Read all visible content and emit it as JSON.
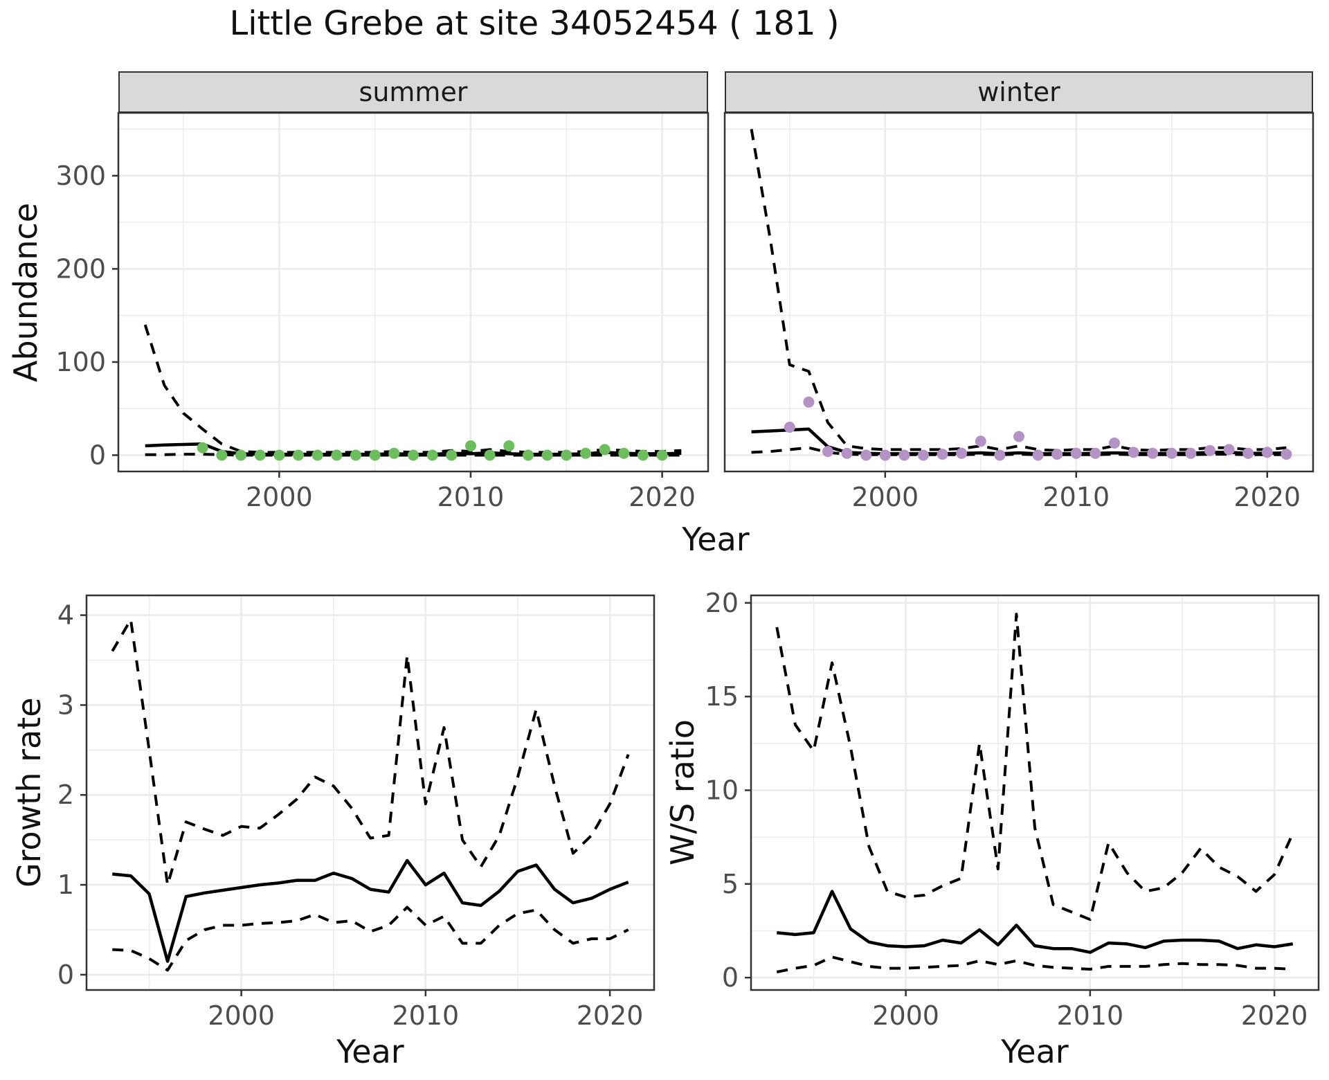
{
  "title": "Little Grebe at site 34052454 ( 181 )",
  "facets": {
    "summer": "summer",
    "winter": "winter"
  },
  "axes": {
    "abundance_label": "Abundance",
    "growth_label": "Growth rate",
    "ws_label": "W/S ratio",
    "year_label": "Year"
  },
  "colors": {
    "summer_point": "#6CBE5C",
    "winter_point": "#B592C6",
    "line": "#000000",
    "grid": "#EBEBEB",
    "panel_border": "#333333",
    "tick_label": "#4D4D4D",
    "strip_bg": "#D9D9D9"
  },
  "chart_data": [
    {
      "id": "abundance-summer",
      "type": "line",
      "facet_label": "summer",
      "ylabel": "Abundance",
      "xlabel": "Year",
      "xlim": [
        1991.6,
        2022.4
      ],
      "ylim": [
        -17.5,
        367.5
      ],
      "xticks": [
        2000,
        2010,
        2020
      ],
      "xminor": [
        1995,
        2005,
        2015
      ],
      "yticks": [
        0,
        100,
        200,
        300
      ],
      "yminor": [
        50,
        150,
        250,
        350
      ],
      "years": [
        1993,
        1994,
        1995,
        1996,
        1997,
        1998,
        1999,
        2000,
        2001,
        2002,
        2003,
        2004,
        2005,
        2006,
        2007,
        2008,
        2009,
        2010,
        2011,
        2012,
        2013,
        2014,
        2015,
        2016,
        2017,
        2018,
        2019,
        2020,
        2021
      ],
      "series": [
        {
          "name": "upper_95ci",
          "style": "dashed",
          "values": [
            140,
            75,
            45,
            28,
            12,
            4,
            3,
            3,
            3,
            3,
            3,
            3,
            3,
            4,
            3,
            3,
            5,
            4,
            6,
            4,
            3,
            3,
            3,
            4,
            6,
            5,
            4,
            4,
            5
          ]
        },
        {
          "name": "modelled_mean",
          "style": "solid",
          "values": [
            10,
            11,
            11.5,
            12,
            4,
            1.5,
            1,
            1,
            1,
            1,
            1,
            1,
            1,
            1.5,
            1,
            1,
            2,
            1.5,
            2.5,
            1.5,
            1,
            1,
            1,
            1.5,
            3,
            2,
            1.5,
            1.5,
            2
          ]
        },
        {
          "name": "lower_95ci",
          "style": "dashed",
          "values": [
            0.5,
            0.5,
            1,
            1,
            0.5,
            0,
            0,
            0,
            0,
            0,
            0,
            0,
            0,
            0,
            0,
            0,
            0,
            0,
            0,
            0,
            0,
            0,
            0,
            0,
            0,
            0,
            0,
            0,
            0
          ]
        }
      ],
      "points": {
        "name": "observed-abundance-summer",
        "color": "#6CBE5C",
        "years": [
          1996,
          1997,
          1998,
          1999,
          2000,
          2001,
          2002,
          2003,
          2004,
          2005,
          2006,
          2007,
          2008,
          2009,
          2010,
          2011,
          2012,
          2013,
          2014,
          2015,
          2016,
          2017,
          2018,
          2019,
          2020
        ],
        "values": [
          8,
          0,
          0,
          0,
          0,
          0,
          0,
          0,
          0,
          0,
          2,
          0,
          0,
          0,
          10,
          0,
          10,
          0,
          0,
          0,
          2,
          6,
          2,
          0,
          0
        ]
      }
    },
    {
      "id": "abundance-winter",
      "type": "line",
      "facet_label": "winter",
      "xlabel": "Year",
      "xlim": [
        1991.6,
        2022.4
      ],
      "ylim": [
        -17.5,
        367.5
      ],
      "xticks": [
        2000,
        2010,
        2020
      ],
      "xminor": [
        1995,
        2005,
        2015
      ],
      "yticks": [
        0,
        100,
        200,
        300
      ],
      "yminor": [
        50,
        150,
        250,
        350
      ],
      "years": [
        1993,
        1994,
        1995,
        1996,
        1997,
        1998,
        1999,
        2000,
        2001,
        2002,
        2003,
        2004,
        2005,
        2006,
        2007,
        2008,
        2009,
        2010,
        2011,
        2012,
        2013,
        2014,
        2015,
        2016,
        2017,
        2018,
        2019,
        2020,
        2021
      ],
      "series": [
        {
          "name": "upper_95ci",
          "style": "dashed",
          "values": [
            350,
            230,
            97,
            90,
            35,
            10,
            7,
            6,
            6,
            6,
            6,
            7,
            10,
            6,
            10,
            6,
            5,
            6,
            6,
            10,
            6,
            5,
            6,
            6,
            8,
            8,
            6,
            6,
            8
          ]
        },
        {
          "name": "modelled_mean",
          "style": "solid",
          "values": [
            25,
            26,
            27,
            28,
            9,
            3,
            2,
            1.5,
            1.5,
            1.5,
            1.5,
            2,
            2.5,
            1.5,
            2.5,
            1.5,
            1.5,
            1.5,
            2,
            2.5,
            2,
            1.5,
            2,
            2,
            3,
            3,
            2,
            2,
            2.5
          ]
        },
        {
          "name": "lower_95ci",
          "style": "dashed",
          "values": [
            3,
            4,
            6,
            8,
            3,
            1,
            0.5,
            0.5,
            0.5,
            0.5,
            0.5,
            0.5,
            1,
            0.5,
            1,
            0.5,
            0.5,
            0.5,
            0.5,
            1,
            0.5,
            0.5,
            0.5,
            0.5,
            1,
            1,
            0.5,
            0.5,
            0.5
          ]
        }
      ],
      "points": {
        "name": "observed-abundance-winter",
        "color": "#B592C6",
        "years": [
          1995,
          1996,
          1997,
          1998,
          1999,
          2000,
          2001,
          2002,
          2003,
          2004,
          2005,
          2006,
          2007,
          2008,
          2009,
          2010,
          2011,
          2012,
          2013,
          2014,
          2015,
          2016,
          2017,
          2018,
          2019,
          2020,
          2021
        ],
        "values": [
          30,
          57,
          4,
          2,
          0,
          0,
          0,
          0,
          1,
          2,
          15,
          0,
          20,
          0,
          1,
          2,
          2,
          13,
          3,
          2,
          2,
          2,
          5,
          6,
          2,
          3,
          1
        ]
      }
    },
    {
      "id": "growth-rate",
      "type": "line",
      "ylabel": "Growth rate",
      "xlabel": "Year",
      "xlim": [
        1991.6,
        2022.4
      ],
      "ylim": [
        -0.17,
        4.22
      ],
      "xticks": [
        2000,
        2010,
        2020
      ],
      "xminor": [
        1995,
        2005,
        2015
      ],
      "yticks": [
        0,
        1,
        2,
        3,
        4
      ],
      "yminor": [
        0.5,
        1.5,
        2.5,
        3.5
      ],
      "years": [
        1993,
        1994,
        1995,
        1996,
        1997,
        1998,
        1999,
        2000,
        2001,
        2002,
        2003,
        2004,
        2005,
        2006,
        2007,
        2008,
        2009,
        2010,
        2011,
        2012,
        2013,
        2014,
        2015,
        2016,
        2017,
        2018,
        2019,
        2020,
        2021
      ],
      "series": [
        {
          "name": "upper_95ci",
          "style": "dashed",
          "values": [
            3.6,
            3.95,
            2.5,
            1.0,
            1.7,
            1.62,
            1.55,
            1.65,
            1.63,
            1.78,
            1.95,
            2.2,
            2.1,
            1.85,
            1.52,
            1.55,
            3.55,
            1.9,
            2.75,
            1.5,
            1.2,
            1.55,
            2.2,
            2.95,
            2.1,
            1.35,
            1.55,
            1.9,
            2.45
          ]
        },
        {
          "name": "modelled_mean",
          "style": "solid",
          "values": [
            1.12,
            1.1,
            0.9,
            0.15,
            0.87,
            0.91,
            0.94,
            0.97,
            1.0,
            1.02,
            1.05,
            1.05,
            1.13,
            1.07,
            0.95,
            0.92,
            1.27,
            1.0,
            1.13,
            0.8,
            0.77,
            0.93,
            1.15,
            1.22,
            0.95,
            0.8,
            0.85,
            0.95,
            1.03
          ]
        },
        {
          "name": "lower_95ci",
          "style": "dashed",
          "values": [
            0.28,
            0.27,
            0.18,
            0.05,
            0.38,
            0.5,
            0.55,
            0.55,
            0.57,
            0.58,
            0.6,
            0.67,
            0.58,
            0.6,
            0.48,
            0.55,
            0.75,
            0.55,
            0.65,
            0.35,
            0.35,
            0.55,
            0.68,
            0.72,
            0.5,
            0.35,
            0.4,
            0.4,
            0.5
          ]
        }
      ]
    },
    {
      "id": "ws-ratio",
      "type": "line",
      "ylabel": "W/S ratio",
      "xlabel": "Year",
      "xlim": [
        1991.6,
        2022.4
      ],
      "ylim": [
        -0.66,
        20.4
      ],
      "xticks": [
        2000,
        2010,
        2020
      ],
      "xminor": [
        1995,
        2005,
        2015
      ],
      "yticks": [
        0,
        5,
        10,
        15,
        20
      ],
      "yminor": [
        2.5,
        7.5,
        12.5,
        17.5
      ],
      "years": [
        1993,
        1994,
        1995,
        1996,
        1997,
        1998,
        1999,
        2000,
        2001,
        2002,
        2003,
        2004,
        2005,
        2006,
        2007,
        2008,
        2009,
        2010,
        2011,
        2012,
        2013,
        2014,
        2015,
        2016,
        2017,
        2018,
        2019,
        2020,
        2021
      ],
      "series": [
        {
          "name": "upper_95ci",
          "style": "dashed",
          "values": [
            18.7,
            13.5,
            12.1,
            16.8,
            12.3,
            7.0,
            4.6,
            4.3,
            4.4,
            4.9,
            5.3,
            12.5,
            5.8,
            19.4,
            8.0,
            3.9,
            3.5,
            3.1,
            7.2,
            5.6,
            4.6,
            4.8,
            5.6,
            6.9,
            5.9,
            5.4,
            4.6,
            5.5,
            7.7
          ]
        },
        {
          "name": "modelled_mean",
          "style": "solid",
          "values": [
            2.4,
            2.3,
            2.4,
            4.6,
            2.6,
            1.9,
            1.7,
            1.65,
            1.7,
            2.0,
            1.85,
            2.55,
            1.75,
            2.8,
            1.7,
            1.55,
            1.55,
            1.35,
            1.85,
            1.8,
            1.6,
            1.95,
            2.0,
            2.0,
            1.95,
            1.55,
            1.75,
            1.65,
            1.8
          ]
        },
        {
          "name": "lower_95ci",
          "style": "dashed",
          "values": [
            0.3,
            0.5,
            0.65,
            1.1,
            0.85,
            0.6,
            0.5,
            0.5,
            0.55,
            0.6,
            0.65,
            0.9,
            0.7,
            0.9,
            0.65,
            0.55,
            0.5,
            0.45,
            0.6,
            0.6,
            0.6,
            0.7,
            0.75,
            0.7,
            0.7,
            0.65,
            0.5,
            0.5,
            0.45
          ]
        }
      ]
    }
  ]
}
